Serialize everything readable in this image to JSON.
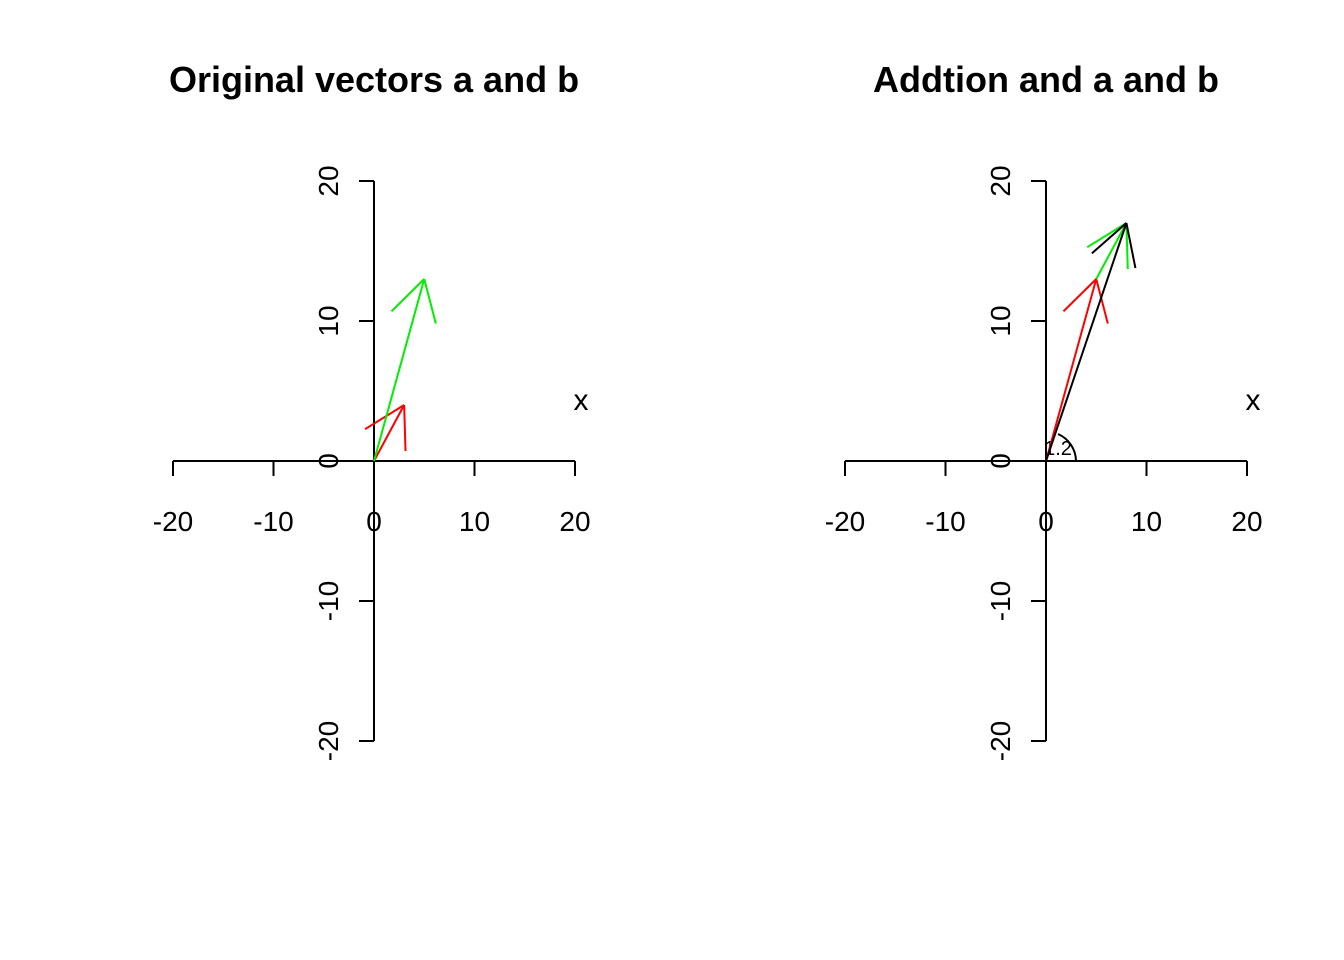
{
  "chart_data": [
    {
      "type": "vector",
      "title": "Original vectors a and b",
      "xlabel": "x",
      "xlim": [
        -20,
        20
      ],
      "ylim": [
        -20,
        20
      ],
      "xticks": [
        "-20",
        "-10",
        "0",
        "10",
        "20"
      ],
      "yticks": [
        "-20",
        "-10",
        "0",
        "10",
        "20"
      ],
      "vectors": [
        {
          "from": [
            0,
            0
          ],
          "to": [
            3,
            4
          ],
          "color": "#ff0000"
        },
        {
          "from": [
            0,
            0
          ],
          "to": [
            5,
            13
          ],
          "color": "#00ee00"
        }
      ],
      "angle_label": ""
    },
    {
      "type": "vector",
      "title": "Addtion and a and b",
      "xlabel": "x",
      "xlim": [
        -20,
        20
      ],
      "ylim": [
        -20,
        20
      ],
      "xticks": [
        "-20",
        "-10",
        "0",
        "10",
        "20"
      ],
      "yticks": [
        "-20",
        "-10",
        "0",
        "10",
        "20"
      ],
      "vectors": [
        {
          "from": [
            0,
            0
          ],
          "to": [
            5,
            13
          ],
          "color": "#ff0000"
        },
        {
          "from": [
            5,
            13
          ],
          "to": [
            8,
            17
          ],
          "color": "#00ee00"
        },
        {
          "from": [
            0,
            0
          ],
          "to": [
            8,
            17
          ],
          "color": "#000000"
        }
      ],
      "angle_label": "1.2"
    }
  ]
}
